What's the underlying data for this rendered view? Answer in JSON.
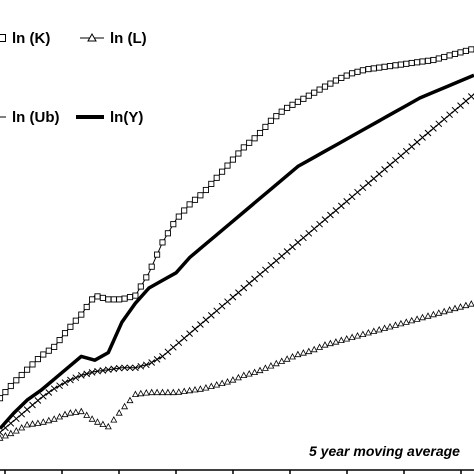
{
  "chart_data": {
    "type": "line",
    "title": "",
    "xlabel": "",
    "ylabel": "",
    "grid": false,
    "legend_position": "top-left",
    "x": [
      0,
      4,
      8,
      12,
      16,
      20,
      24,
      28,
      32,
      36,
      40,
      44,
      48,
      52,
      56,
      60,
      64,
      68,
      72,
      76,
      80,
      84,
      88,
      92,
      96,
      100,
      104,
      108,
      112,
      116,
      120,
      124,
      128,
      132,
      136,
      140
    ],
    "xlim": [
      0,
      140
    ],
    "ylim": [
      0,
      100
    ],
    "series": [
      {
        "name": "ln (K)",
        "marker": "square",
        "line": "thin",
        "values": [
          11,
          15,
          18.5,
          22,
          24.5,
          29,
          33,
          38,
          37,
          37,
          38,
          44,
          52,
          58,
          62,
          65,
          69,
          73,
          77,
          80,
          84,
          87,
          89,
          91,
          93,
          95,
          96.5,
          97.5,
          98,
          98.5,
          99,
          99.5,
          100,
          101,
          102,
          103
        ]
      },
      {
        "name": "ln (L)",
        "marker": "triangle",
        "line": "none",
        "values": [
          0.5,
          2,
          4,
          4.5,
          5.5,
          7,
          7.5,
          5,
          3.5,
          8,
          12,
          12.5,
          12.5,
          12.5,
          13,
          13.5,
          14.5,
          15.5,
          17,
          18,
          19.5,
          21,
          22.5,
          23.5,
          25,
          26,
          27,
          28,
          29,
          30,
          31,
          32,
          33,
          34,
          35,
          36
        ]
      },
      {
        "name": "ln (Ub)",
        "marker": "cross",
        "line": "thin",
        "values": [
          2,
          5,
          8,
          11,
          13.5,
          15.5,
          17,
          18,
          18.5,
          19,
          19,
          20,
          22,
          25,
          28,
          31,
          34,
          37,
          40,
          43,
          46,
          49,
          52,
          55,
          58,
          61,
          64,
          67,
          70,
          73,
          76,
          79,
          82,
          85,
          88,
          91
        ]
      },
      {
        "name": "ln(Y)",
        "marker": "none",
        "line": "thick",
        "values": [
          3,
          7,
          10.5,
          13,
          16,
          19,
          22,
          21,
          23,
          31,
          36,
          40,
          42,
          44,
          48,
          51,
          54,
          57,
          60,
          63,
          66,
          69,
          72,
          74,
          76,
          78,
          80,
          82,
          84,
          86,
          88,
          90,
          91.5,
          93,
          94.5,
          96
        ]
      }
    ],
    "annotation": "5 year moving average"
  }
}
